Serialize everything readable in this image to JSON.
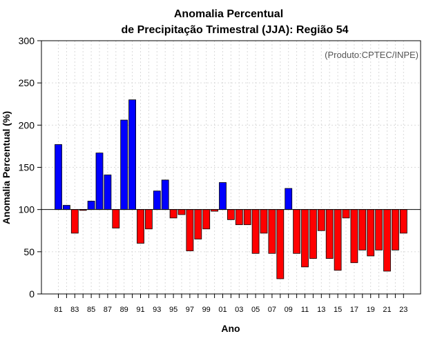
{
  "chart_data": {
    "type": "bar",
    "title_line1": "Anomalia Percentual",
    "title_line2": "de Precipitação Trimestral (JJA): Região 54",
    "xlabel": "Ano",
    "ylabel": "Anomalia Percentual (%)",
    "source": "(Produto:CPTEC/INPE)",
    "ylim": [
      0,
      300
    ],
    "yticks": [
      0,
      50,
      100,
      150,
      200,
      250,
      300
    ],
    "baseline": 100,
    "grid": true,
    "categories": [
      "81",
      "82",
      "83",
      "84",
      "85",
      "86",
      "87",
      "88",
      "89",
      "90",
      "91",
      "92",
      "93",
      "94",
      "95",
      "96",
      "97",
      "98",
      "99",
      "00",
      "01",
      "02",
      "03",
      "04",
      "05",
      "06",
      "07",
      "08",
      "09",
      "10",
      "11",
      "12",
      "13",
      "14",
      "15",
      "16",
      "17",
      "18",
      "19",
      "20",
      "21",
      "22",
      "23"
    ],
    "xtick_labels": [
      "81",
      "83",
      "85",
      "87",
      "89",
      "91",
      "93",
      "95",
      "97",
      "99",
      "01",
      "03",
      "05",
      "07",
      "09",
      "11",
      "13",
      "15",
      "17",
      "19",
      "21",
      "23"
    ],
    "values": [
      177,
      105,
      72,
      99,
      110,
      167,
      141,
      78,
      206,
      230,
      60,
      77,
      122,
      135,
      90,
      94,
      51,
      65,
      77,
      98,
      132,
      88,
      82,
      82,
      48,
      72,
      48,
      18,
      125,
      48,
      32,
      42,
      75,
      42,
      28,
      90,
      37,
      52,
      45,
      52,
      27,
      52,
      72
    ],
    "colors": {
      "above": "#0000ff",
      "below": "#ff0000",
      "outline": "#000000"
    }
  }
}
